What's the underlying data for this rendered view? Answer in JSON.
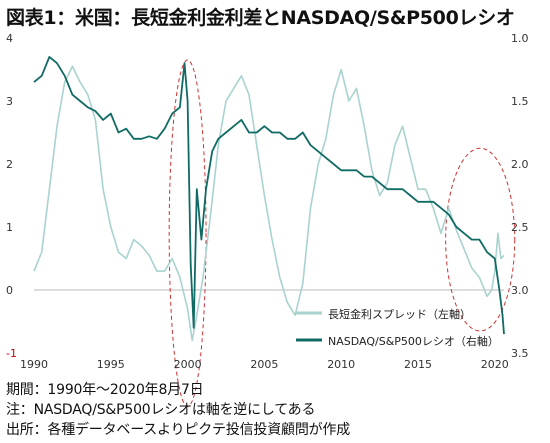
{
  "title": "図表1：米国：長短金利金利差とNASDAQ/S&P500レシオ",
  "notes": [
    "期間：1990年～2020年8月7日",
    "注：NASDAQ/S&P500レシオは軸を逆にしてある",
    "出所：各種データベースよりピクテ投信投資顧問が作成"
  ],
  "colors": {
    "spread": "#a9d3cf",
    "ratio": "#0f6b63",
    "annotation": "#cc3333",
    "zero_line": "#bbbbbb"
  },
  "chart_data": {
    "type": "line",
    "title": "図表1：米国：長短金利金利差とNASDAQ/S&P500レシオ",
    "xlabel": "",
    "ylabel_left": "",
    "ylabel_right": "",
    "x_range": [
      1990,
      2020.6
    ],
    "x_ticks": [
      "1990",
      "1995",
      "2000",
      "2005",
      "2010",
      "2015",
      "2020"
    ],
    "y_left_range": [
      -1,
      4
    ],
    "y_left_ticks": [
      "4",
      "3",
      "2",
      "1",
      "0",
      "-1"
    ],
    "y_right_range": [
      1.0,
      3.5
    ],
    "y_right_inverted": true,
    "y_right_ticks": [
      "1.0",
      "1.5",
      "2.0",
      "2.5",
      "3.0",
      "3.5"
    ],
    "legend_position": "bottom-right",
    "series": [
      {
        "name": "長短金利スプレッド（左軸）",
        "axis": "left",
        "points": [
          [
            1990.0,
            0.3
          ],
          [
            1990.5,
            0.6
          ],
          [
            1991.0,
            1.6
          ],
          [
            1991.5,
            2.6
          ],
          [
            1992.0,
            3.3
          ],
          [
            1992.5,
            3.55
          ],
          [
            1993.0,
            3.3
          ],
          [
            1993.5,
            3.1
          ],
          [
            1994.0,
            2.7
          ],
          [
            1994.5,
            1.6
          ],
          [
            1995.0,
            1.0
          ],
          [
            1995.5,
            0.6
          ],
          [
            1996.0,
            0.5
          ],
          [
            1996.5,
            0.8
          ],
          [
            1997.0,
            0.7
          ],
          [
            1997.5,
            0.55
          ],
          [
            1998.0,
            0.3
          ],
          [
            1998.5,
            0.3
          ],
          [
            1999.0,
            0.5
          ],
          [
            1999.5,
            0.2
          ],
          [
            2000.0,
            -0.3
          ],
          [
            2000.3,
            -0.8
          ],
          [
            2000.6,
            -0.4
          ],
          [
            2001.0,
            0.2
          ],
          [
            2001.5,
            1.2
          ],
          [
            2002.0,
            2.3
          ],
          [
            2002.5,
            3.0
          ],
          [
            2003.0,
            3.2
          ],
          [
            2003.5,
            3.4
          ],
          [
            2004.0,
            3.1
          ],
          [
            2004.5,
            2.3
          ],
          [
            2005.0,
            1.5
          ],
          [
            2005.5,
            0.8
          ],
          [
            2006.0,
            0.2
          ],
          [
            2006.5,
            -0.2
          ],
          [
            2007.0,
            -0.4
          ],
          [
            2007.5,
            0.1
          ],
          [
            2008.0,
            1.3
          ],
          [
            2008.5,
            2.0
          ],
          [
            2009.0,
            2.4
          ],
          [
            2009.5,
            3.1
          ],
          [
            2010.0,
            3.5
          ],
          [
            2010.5,
            3.0
          ],
          [
            2011.0,
            3.2
          ],
          [
            2011.5,
            2.6
          ],
          [
            2012.0,
            1.9
          ],
          [
            2012.5,
            1.5
          ],
          [
            2013.0,
            1.7
          ],
          [
            2013.5,
            2.3
          ],
          [
            2014.0,
            2.6
          ],
          [
            2014.5,
            2.1
          ],
          [
            2015.0,
            1.6
          ],
          [
            2015.5,
            1.6
          ],
          [
            2016.0,
            1.3
          ],
          [
            2016.5,
            0.9
          ],
          [
            2017.0,
            1.3
          ],
          [
            2017.5,
            0.95
          ],
          [
            2018.0,
            0.65
          ],
          [
            2018.5,
            0.35
          ],
          [
            2019.0,
            0.2
          ],
          [
            2019.5,
            -0.1
          ],
          [
            2019.8,
            0.0
          ],
          [
            2020.0,
            0.3
          ],
          [
            2020.2,
            0.9
          ],
          [
            2020.4,
            0.5
          ],
          [
            2020.6,
            0.55
          ]
        ]
      },
      {
        "name": "NASDAQ/S&P500レシオ（右軸）",
        "axis": "right",
        "points": [
          [
            1990.0,
            1.35
          ],
          [
            1990.5,
            1.3
          ],
          [
            1991.0,
            1.15
          ],
          [
            1991.5,
            1.2
          ],
          [
            1992.0,
            1.3
          ],
          [
            1992.5,
            1.45
          ],
          [
            1993.0,
            1.5
          ],
          [
            1993.5,
            1.55
          ],
          [
            1994.0,
            1.58
          ],
          [
            1994.5,
            1.65
          ],
          [
            1995.0,
            1.6
          ],
          [
            1995.5,
            1.75
          ],
          [
            1996.0,
            1.72
          ],
          [
            1996.5,
            1.8
          ],
          [
            1997.0,
            1.8
          ],
          [
            1997.5,
            1.78
          ],
          [
            1998.0,
            1.8
          ],
          [
            1998.5,
            1.72
          ],
          [
            1999.0,
            1.6
          ],
          [
            1999.5,
            1.55
          ],
          [
            1999.8,
            1.2
          ],
          [
            2000.0,
            1.5
          ],
          [
            2000.2,
            2.8
          ],
          [
            2000.4,
            3.3
          ],
          [
            2000.6,
            2.2
          ],
          [
            2000.9,
            2.6
          ],
          [
            2001.2,
            2.2
          ],
          [
            2001.6,
            1.9
          ],
          [
            2002.0,
            1.8
          ],
          [
            2002.5,
            1.75
          ],
          [
            2003.0,
            1.7
          ],
          [
            2003.5,
            1.65
          ],
          [
            2004.0,
            1.75
          ],
          [
            2004.5,
            1.75
          ],
          [
            2005.0,
            1.7
          ],
          [
            2005.5,
            1.75
          ],
          [
            2006.0,
            1.75
          ],
          [
            2006.5,
            1.8
          ],
          [
            2007.0,
            1.8
          ],
          [
            2007.5,
            1.75
          ],
          [
            2008.0,
            1.85
          ],
          [
            2008.5,
            1.9
          ],
          [
            2009.0,
            1.95
          ],
          [
            2009.5,
            2.0
          ],
          [
            2010.0,
            2.05
          ],
          [
            2010.5,
            2.05
          ],
          [
            2011.0,
            2.05
          ],
          [
            2011.5,
            2.1
          ],
          [
            2012.0,
            2.1
          ],
          [
            2012.5,
            2.15
          ],
          [
            2013.0,
            2.2
          ],
          [
            2013.5,
            2.2
          ],
          [
            2014.0,
            2.2
          ],
          [
            2014.5,
            2.25
          ],
          [
            2015.0,
            2.3
          ],
          [
            2015.5,
            2.3
          ],
          [
            2016.0,
            2.3
          ],
          [
            2016.5,
            2.35
          ],
          [
            2017.0,
            2.4
          ],
          [
            2017.5,
            2.5
          ],
          [
            2018.0,
            2.55
          ],
          [
            2018.5,
            2.6
          ],
          [
            2019.0,
            2.6
          ],
          [
            2019.5,
            2.7
          ],
          [
            2020.0,
            2.75
          ],
          [
            2020.3,
            3.0
          ],
          [
            2020.5,
            3.2
          ],
          [
            2020.6,
            3.35
          ]
        ]
      }
    ],
    "annotations": [
      {
        "type": "dashed-ellipse",
        "center": [
          2000.0,
          0.9
        ],
        "radius": [
          1.2,
          2.75
        ]
      },
      {
        "type": "dashed-ellipse",
        "center": [
          2019.05,
          0.8
        ],
        "radius": [
          2.25,
          1.45
        ]
      }
    ]
  }
}
